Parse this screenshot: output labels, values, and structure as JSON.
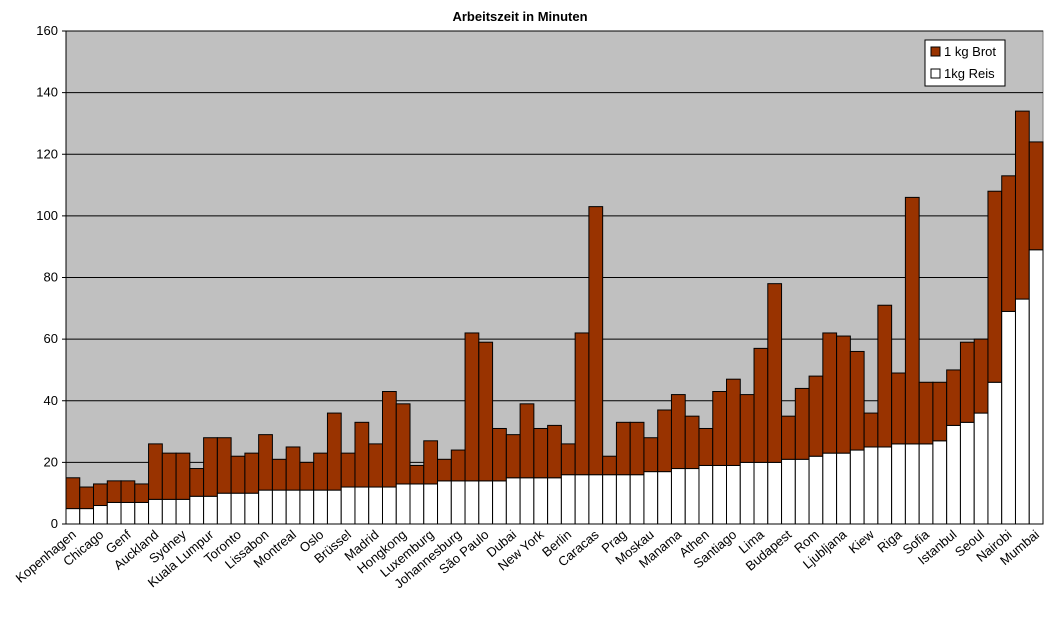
{
  "chart_data": {
    "type": "stacked_bar",
    "title": "Arbeitszeit in Minuten",
    "categories": [
      "Kopenhagen",
      null,
      "Chicago",
      null,
      "Genf",
      null,
      "Auckland",
      null,
      "Sydney",
      null,
      "Kuala Lumpur",
      null,
      "Toronto",
      null,
      "Lissabon",
      null,
      "Montreal",
      null,
      "Oslo",
      null,
      "Brüssel",
      null,
      "Madrid",
      null,
      "Hongkong",
      null,
      "Luxemburg",
      null,
      "Johannesburg",
      null,
      "São Paulo",
      null,
      "Dubai",
      null,
      "New York",
      null,
      "Berlin",
      null,
      "Caracas",
      null,
      "Prag",
      null,
      "Moskau",
      null,
      "Manama",
      null,
      "Athen",
      null,
      "Santiago",
      null,
      "Lima",
      null,
      "Budapest",
      null,
      "Rom",
      null,
      "Ljubljana",
      null,
      "Kiew",
      null,
      "Riga",
      null,
      "Sofia",
      null,
      "Istanbul",
      null,
      "Seoul",
      null,
      "Nairobi",
      null,
      "Mumbai"
    ],
    "series": [
      {
        "name": "1kg Reis",
        "color": "#ffffff",
        "values": [
          5,
          5,
          6,
          7,
          7,
          7,
          8,
          8,
          8,
          9,
          9,
          10,
          10,
          10,
          11,
          11,
          11,
          11,
          11,
          11,
          12,
          12,
          12,
          12,
          13,
          13,
          13,
          14,
          14,
          14,
          14,
          14,
          15,
          15,
          15,
          15,
          16,
          16,
          16,
          16,
          16,
          16,
          17,
          17,
          18,
          18,
          19,
          19,
          19,
          20,
          20,
          20,
          21,
          21,
          22,
          23,
          23,
          24,
          25,
          25,
          26,
          26,
          26,
          27,
          32,
          33,
          36,
          46,
          69,
          73,
          89
        ]
      },
      {
        "name": "1 kg Brot",
        "color": "#993300",
        "values": [
          10,
          7,
          7,
          7,
          7,
          6,
          18,
          15,
          15,
          9,
          19,
          18,
          12,
          13,
          18,
          10,
          14,
          9,
          12,
          25,
          11,
          21,
          14,
          31,
          26,
          6,
          14,
          7,
          10,
          48,
          45,
          17,
          14,
          24,
          16,
          17,
          10,
          46,
          87,
          6,
          17,
          17,
          11,
          20,
          24,
          17,
          12,
          24,
          28,
          22,
          37,
          58,
          14,
          23,
          26,
          39,
          38,
          32,
          11,
          46,
          23,
          80,
          20,
          19,
          18,
          26,
          24,
          62,
          44,
          61,
          35
        ]
      }
    ],
    "ylim": [
      0,
      160
    ],
    "yticks": [
      0,
      20,
      40,
      60,
      80,
      100,
      120,
      140,
      160
    ],
    "grid": true,
    "legend": "top-right"
  }
}
